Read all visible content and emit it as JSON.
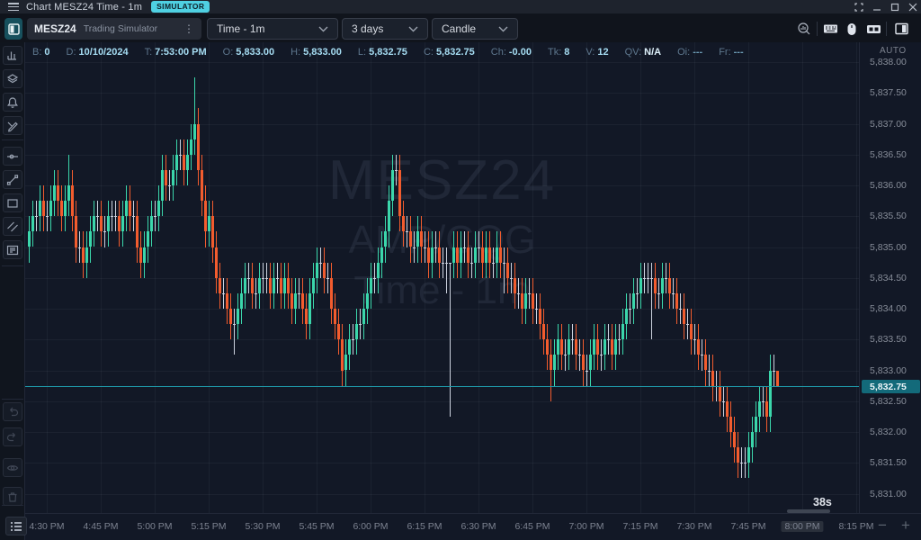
{
  "window": {
    "title": "Chart MESZ24 Time - 1m",
    "badge": "SIMULATOR",
    "controls": [
      "fullscreen",
      "minimize",
      "maximize",
      "close"
    ]
  },
  "toolbar": {
    "layout_icon": "layout-left-panel",
    "symbol": {
      "name": "MESZ24",
      "description": "Trading Simulator",
      "menu_glyph": "⋮"
    },
    "interval_dropdown": "Time - 1m",
    "range_dropdown": "3 days",
    "style_dropdown": "Candle",
    "right_icons": [
      "zoom-chart",
      "keyboard",
      "mouse",
      "tags",
      "panel-right"
    ]
  },
  "quote_bar": {
    "fields": [
      {
        "label": "B:",
        "value": "0"
      },
      {
        "label": "D:",
        "value": "10/10/2024"
      },
      {
        "label": "T:",
        "value": "7:53:00 PM"
      },
      {
        "label": "O:",
        "value": "5,833.00"
      },
      {
        "label": "H:",
        "value": "5,833.00"
      },
      {
        "label": "L:",
        "value": "5,832.75"
      },
      {
        "label": "C:",
        "value": "5,832.75"
      },
      {
        "label": "Ch:",
        "value": "-0.00"
      },
      {
        "label": "Tk:",
        "value": "8"
      },
      {
        "label": "V:",
        "value": "12"
      },
      {
        "label": "QV:",
        "value": "N/A"
      },
      {
        "label": "Oi:",
        "value": "---"
      },
      {
        "label": "Fr:",
        "value": "---"
      }
    ],
    "auto_label": "AUTO"
  },
  "sidebar": {
    "tools": [
      "indicators",
      "layers",
      "alert",
      "draw",
      "horizontal-ray",
      "trend-line",
      "rectangle",
      "parallel-channel",
      "pattern-list"
    ],
    "history": [
      "undo",
      "redo",
      "visibility",
      "delete"
    ],
    "corner_button": "object-tree"
  },
  "watermark": {
    "line1": "MESZ24",
    "line2": "AMP/CQG",
    "line3": "Time - 1m"
  },
  "price_axis": {
    "labels": [
      "5,838.00",
      "5,837.50",
      "5,837.00",
      "5,836.50",
      "5,836.00",
      "5,835.50",
      "5,835.00",
      "5,834.50",
      "5,834.00",
      "5,833.50",
      "5,833.00",
      "5,832.50",
      "5,832.00",
      "5,831.50",
      "5,831.00"
    ],
    "last_price_label": "5,832.75"
  },
  "time_axis": {
    "labels": [
      "4:30 PM",
      "4:45 PM",
      "5:00 PM",
      "5:15 PM",
      "5:30 PM",
      "5:45 PM",
      "6:00 PM",
      "6:15 PM",
      "6:30 PM",
      "6:45 PM",
      "7:00 PM",
      "7:15 PM",
      "7:30 PM",
      "7:45 PM",
      "8:00 PM",
      "8:15 PM"
    ],
    "highlight_index": 14,
    "zoom_out": "−",
    "zoom_in": "+"
  },
  "countdown": "38s",
  "colors": {
    "up": "#3bd6ab",
    "down": "#f25c2e",
    "neutral": "#ccd2de",
    "accent": "#4fd0e2",
    "price_line": "#1f9aaa",
    "price_label_bg": "#136a7a"
  },
  "chart_data": {
    "type": "candlestick",
    "symbol": "MESZ24",
    "feed": "AMP/CQG",
    "interval": "Time - 1m",
    "start_time": "4:25 PM",
    "end_time": "7:53 PM",
    "last_price": 5832.75,
    "ylim": [
      5831.0,
      5838.0
    ],
    "candles": [
      [
        5835,
        5835.5,
        5834.75,
        5835.25
      ],
      [
        5835.25,
        5835.75,
        5835,
        5835.5
      ],
      [
        5835.5,
        5835.75,
        5835.25,
        5835.5
      ],
      [
        5835.5,
        5836,
        5835.25,
        5835.75
      ],
      [
        5835.75,
        5836,
        5835.25,
        5835.5
      ],
      [
        5835.5,
        5835.75,
        5835.25,
        5835.5
      ],
      [
        5835.5,
        5836,
        5835.25,
        5835.75
      ],
      [
        5835.75,
        5836.25,
        5835.5,
        5836
      ],
      [
        5836,
        5836.25,
        5835.5,
        5835.75
      ],
      [
        5835.75,
        5836,
        5835.25,
        5835.5
      ],
      [
        5835.5,
        5836,
        5835.25,
        5835.75
      ],
      [
        5835.75,
        5836.5,
        5835.5,
        5836
      ],
      [
        5836,
        5836.25,
        5835.25,
        5835.5
      ],
      [
        5835.5,
        5835.75,
        5834.75,
        5835
      ],
      [
        5835,
        5835.25,
        5834.75,
        5835
      ],
      [
        5835,
        5835.25,
        5834.5,
        5834.75
      ],
      [
        5834.75,
        5835.25,
        5834.5,
        5835
      ],
      [
        5835,
        5835.5,
        5834.75,
        5835.25
      ],
      [
        5835.25,
        5835.75,
        5835,
        5835.5
      ],
      [
        5835.5,
        5835.75,
        5835.25,
        5835.5
      ],
      [
        5835.5,
        5835.75,
        5835,
        5835.25
      ],
      [
        5835.25,
        5835.5,
        5835,
        5835.25
      ],
      [
        5835.25,
        5835.75,
        5835,
        5835.5
      ],
      [
        5835.5,
        5835.75,
        5835.25,
        5835.5
      ],
      [
        5835.5,
        5835.75,
        5835.25,
        5835.5
      ],
      [
        5835.5,
        5835.75,
        5835,
        5835.25
      ],
      [
        5835.25,
        5835.75,
        5835,
        5835.5
      ],
      [
        5835.5,
        5836,
        5835.25,
        5835.75
      ],
      [
        5835.75,
        5836,
        5835.25,
        5835.5
      ],
      [
        5835.5,
        5835.75,
        5835.25,
        5835.5
      ],
      [
        5835.5,
        5835.75,
        5834.75,
        5835
      ],
      [
        5835,
        5835.25,
        5834.5,
        5834.75
      ],
      [
        5834.75,
        5835.25,
        5834.5,
        5835
      ],
      [
        5835,
        5835.5,
        5834.75,
        5835.25
      ],
      [
        5835.25,
        5835.75,
        5835,
        5835.5
      ],
      [
        5835.5,
        5835.75,
        5835.25,
        5835.5
      ],
      [
        5835.5,
        5836,
        5835.25,
        5835.75
      ],
      [
        5835.75,
        5836.5,
        5835.5,
        5836.25
      ],
      [
        5836.25,
        5836.5,
        5835.75,
        5836
      ],
      [
        5836,
        5836.25,
        5835.75,
        5836
      ],
      [
        5836,
        5836.5,
        5835.75,
        5836.25
      ],
      [
        5836.25,
        5836.75,
        5836,
        5836.5
      ],
      [
        5836.5,
        5836.75,
        5836.25,
        5836.5
      ],
      [
        5836.5,
        5836.75,
        5836,
        5836.25
      ],
      [
        5836.25,
        5836.75,
        5836,
        5836.5
      ],
      [
        5836.5,
        5837,
        5836.25,
        5836.75
      ],
      [
        5836.75,
        5837.75,
        5836.5,
        5837
      ],
      [
        5837,
        5837.25,
        5836,
        5836.25
      ],
      [
        5836.25,
        5836.5,
        5835.5,
        5835.75
      ],
      [
        5835.75,
        5836,
        5835,
        5835.25
      ],
      [
        5835.25,
        5835.75,
        5835,
        5835.5
      ],
      [
        5835.5,
        5835.75,
        5834.75,
        5835
      ],
      [
        5835,
        5835.25,
        5834.25,
        5834.5
      ],
      [
        5834.5,
        5834.75,
        5834,
        5834.25
      ],
      [
        5834.25,
        5834.5,
        5834,
        5834.25
      ],
      [
        5834.25,
        5834.5,
        5833.75,
        5834
      ],
      [
        5834,
        5834.25,
        5833.5,
        5833.75
      ],
      [
        5833.75,
        5834,
        5833.25,
        5833.75
      ],
      [
        5833.75,
        5834.25,
        5833.5,
        5834
      ],
      [
        5834,
        5834.5,
        5833.75,
        5834.25
      ],
      [
        5834.25,
        5834.75,
        5834,
        5834.5
      ],
      [
        5834.5,
        5834.75,
        5834.25,
        5834.5
      ],
      [
        5834.5,
        5834.75,
        5834,
        5834.25
      ],
      [
        5834.25,
        5834.5,
        5834,
        5834.25
      ],
      [
        5834.25,
        5834.75,
        5834,
        5834.5
      ],
      [
        5834.5,
        5834.75,
        5834.25,
        5834.5
      ],
      [
        5834.5,
        5834.75,
        5834.25,
        5834.5
      ],
      [
        5834.5,
        5834.75,
        5834,
        5834.25
      ],
      [
        5834.25,
        5834.75,
        5834,
        5834.5
      ],
      [
        5834.5,
        5834.75,
        5834.25,
        5834.5
      ],
      [
        5834.5,
        5834.75,
        5834,
        5834.25
      ],
      [
        5834.25,
        5834.75,
        5834,
        5834.5
      ],
      [
        5834.5,
        5834.75,
        5834,
        5834.25
      ],
      [
        5834.25,
        5834.5,
        5833.75,
        5834
      ],
      [
        5834,
        5834.5,
        5833.75,
        5834.25
      ],
      [
        5834.25,
        5834.5,
        5834,
        5834.25
      ],
      [
        5834.25,
        5834.5,
        5833.75,
        5834
      ],
      [
        5834,
        5834.25,
        5833.5,
        5833.75
      ],
      [
        5833.75,
        5834.5,
        5833.5,
        5834.25
      ],
      [
        5834.25,
        5834.75,
        5834,
        5834.5
      ],
      [
        5834.5,
        5835,
        5834.25,
        5834.75
      ],
      [
        5834.75,
        5835,
        5834.5,
        5834.75
      ],
      [
        5834.75,
        5835,
        5834.25,
        5834.5
      ],
      [
        5834.5,
        5834.75,
        5834.25,
        5834.5
      ],
      [
        5834.5,
        5834.75,
        5833.75,
        5834
      ],
      [
        5834,
        5834.25,
        5833.5,
        5833.75
      ],
      [
        5833.75,
        5834,
        5833.25,
        5833.5
      ],
      [
        5833.5,
        5833.75,
        5832.75,
        5833
      ],
      [
        5833,
        5833.5,
        5832.75,
        5833.25
      ],
      [
        5833.25,
        5833.75,
        5833,
        5833.5
      ],
      [
        5833.5,
        5833.75,
        5833.25,
        5833.5
      ],
      [
        5833.5,
        5834,
        5833.25,
        5833.75
      ],
      [
        5833.75,
        5834,
        5833.5,
        5833.75
      ],
      [
        5833.75,
        5834.25,
        5833.5,
        5834
      ],
      [
        5834,
        5834.5,
        5833.75,
        5834.25
      ],
      [
        5834.25,
        5834.75,
        5834,
        5834.5
      ],
      [
        5834.5,
        5834.75,
        5834.25,
        5834.5
      ],
      [
        5834.5,
        5835,
        5834.25,
        5834.75
      ],
      [
        5834.75,
        5835.25,
        5834.5,
        5835
      ],
      [
        5835,
        5835.5,
        5834.75,
        5835.25
      ],
      [
        5835.25,
        5836,
        5835,
        5835.75
      ],
      [
        5835.75,
        5836.5,
        5835.5,
        5836.25
      ],
      [
        5836.25,
        5836.5,
        5836,
        5836.25
      ],
      [
        5836.25,
        5836.5,
        5835.25,
        5835.5
      ],
      [
        5835.5,
        5835.75,
        5835,
        5835.25
      ],
      [
        5835.25,
        5835.5,
        5835,
        5835.25
      ],
      [
        5835.25,
        5835.5,
        5834.75,
        5835
      ],
      [
        5835,
        5835.25,
        5834.75,
        5835
      ],
      [
        5835,
        5835.5,
        5834.75,
        5835.25
      ],
      [
        5835.25,
        5835.5,
        5834.75,
        5835
      ],
      [
        5835,
        5835.25,
        5834.75,
        5835
      ],
      [
        5835,
        5835.25,
        5834.5,
        5834.75
      ],
      [
        5834.75,
        5835.25,
        5834.5,
        5835
      ],
      [
        5835,
        5835.25,
        5834.75,
        5835
      ],
      [
        5835,
        5835.25,
        5834.5,
        5834.75
      ],
      [
        5834.75,
        5835,
        5834.5,
        5834.75
      ],
      [
        5834.75,
        5835,
        5834.25,
        5834.75
      ],
      [
        5834.75,
        5834.75,
        5832.25,
        5834.75
      ],
      [
        5834.75,
        5835.25,
        5834.5,
        5835
      ],
      [
        5835,
        5835.25,
        5834.5,
        5834.75
      ],
      [
        5834.75,
        5835.25,
        5834.5,
        5835
      ],
      [
        5835,
        5835.25,
        5834.75,
        5835
      ],
      [
        5835,
        5835.25,
        5834.5,
        5834.75
      ],
      [
        5834.75,
        5835,
        5834.5,
        5834.75
      ],
      [
        5834.75,
        5835.25,
        5834.5,
        5835
      ],
      [
        5835,
        5835.25,
        5834.75,
        5835
      ],
      [
        5835,
        5835.25,
        5834.5,
        5834.75
      ],
      [
        5834.75,
        5835.25,
        5834.5,
        5835
      ],
      [
        5835,
        5835.25,
        5834.5,
        5834.75
      ],
      [
        5834.75,
        5835,
        5834.5,
        5834.75
      ],
      [
        5834.75,
        5835.25,
        5834.5,
        5835
      ],
      [
        5835,
        5835.25,
        5834.5,
        5834.75
      ],
      [
        5834.75,
        5835,
        5834.25,
        5834.75
      ],
      [
        5834.75,
        5835,
        5834.25,
        5834.5
      ],
      [
        5834.5,
        5834.75,
        5834.25,
        5834.5
      ],
      [
        5834.5,
        5834.75,
        5834,
        5834.25
      ],
      [
        5834.25,
        5834.5,
        5834,
        5834.25
      ],
      [
        5834.25,
        5834.5,
        5833.75,
        5834
      ],
      [
        5834,
        5834.5,
        5833.75,
        5834.25
      ],
      [
        5834.25,
        5834.5,
        5834,
        5834.25
      ],
      [
        5834.25,
        5834.5,
        5833.75,
        5834
      ],
      [
        5834,
        5834.25,
        5833.75,
        5834
      ],
      [
        5834,
        5834.25,
        5833.5,
        5833.75
      ],
      [
        5833.75,
        5834,
        5833.25,
        5833.5
      ],
      [
        5833.5,
        5833.75,
        5833,
        5833.25
      ],
      [
        5833.25,
        5833.5,
        5832.5,
        5833
      ],
      [
        5833,
        5833.5,
        5832.75,
        5833.25
      ],
      [
        5833.25,
        5833.75,
        5833,
        5833.5
      ],
      [
        5833.5,
        5833.75,
        5833,
        5833.25
      ],
      [
        5833.25,
        5833.5,
        5833,
        5833.25
      ],
      [
        5833.25,
        5833.75,
        5833,
        5833.5
      ],
      [
        5833.5,
        5833.75,
        5833.25,
        5833.5
      ],
      [
        5833.5,
        5833.75,
        5833,
        5833.25
      ],
      [
        5833.25,
        5833.5,
        5833,
        5833.25
      ],
      [
        5833.25,
        5833.5,
        5832.75,
        5833
      ],
      [
        5833,
        5833.25,
        5832.75,
        5833
      ],
      [
        5833,
        5833.5,
        5832.75,
        5833.25
      ],
      [
        5833.25,
        5833.75,
        5833,
        5833.5
      ],
      [
        5833.5,
        5833.75,
        5833,
        5833.25
      ],
      [
        5833.25,
        5833.5,
        5833,
        5833.25
      ],
      [
        5833.25,
        5833.75,
        5833,
        5833.5
      ],
      [
        5833.5,
        5833.75,
        5833.25,
        5833.5
      ],
      [
        5833.5,
        5833.75,
        5833,
        5833.25
      ],
      [
        5833.25,
        5833.75,
        5833,
        5833.5
      ],
      [
        5833.5,
        5833.75,
        5833.25,
        5833.5
      ],
      [
        5833.5,
        5834,
        5833.25,
        5833.75
      ],
      [
        5833.75,
        5834.25,
        5833.5,
        5834
      ],
      [
        5834,
        5834.25,
        5833.75,
        5834
      ],
      [
        5834,
        5834.5,
        5833.75,
        5834.25
      ],
      [
        5834.25,
        5834.5,
        5834,
        5834.25
      ],
      [
        5834.25,
        5834.75,
        5834,
        5834.5
      ],
      [
        5834.5,
        5834.75,
        5834.25,
        5834.5
      ],
      [
        5834.5,
        5834.75,
        5834.25,
        5834.5
      ],
      [
        5834.5,
        5834.75,
        5833.5,
        5834.5
      ],
      [
        5834.5,
        5834.75,
        5834,
        5834.25
      ],
      [
        5834.25,
        5834.5,
        5834,
        5834.25
      ],
      [
        5834.25,
        5834.75,
        5834,
        5834.5
      ],
      [
        5834.5,
        5834.75,
        5834.25,
        5834.5
      ],
      [
        5834.5,
        5834.75,
        5834,
        5834.25
      ],
      [
        5834.25,
        5834.5,
        5834,
        5834.25
      ],
      [
        5834.25,
        5834.5,
        5833.75,
        5834
      ],
      [
        5834,
        5834.25,
        5833.75,
        5834
      ],
      [
        5834,
        5834.25,
        5833.5,
        5833.75
      ],
      [
        5833.75,
        5834,
        5833.5,
        5833.75
      ],
      [
        5833.75,
        5834,
        5833.25,
        5833.5
      ],
      [
        5833.5,
        5833.75,
        5833.25,
        5833.5
      ],
      [
        5833.5,
        5833.75,
        5833,
        5833.25
      ],
      [
        5833.25,
        5833.5,
        5833,
        5833.25
      ],
      [
        5833.25,
        5833.5,
        5832.75,
        5833
      ],
      [
        5833,
        5833.25,
        5832.75,
        5833
      ],
      [
        5833,
        5833.25,
        5832.5,
        5832.75
      ],
      [
        5832.75,
        5833,
        5832.5,
        5832.75
      ],
      [
        5832.75,
        5833,
        5832.25,
        5832.5
      ],
      [
        5832.5,
        5832.75,
        5832.25,
        5832.5
      ],
      [
        5832.5,
        5832.75,
        5832,
        5832.25
      ],
      [
        5832.25,
        5832.5,
        5831.75,
        5832
      ],
      [
        5832,
        5832.25,
        5831.5,
        5831.75
      ],
      [
        5831.75,
        5832,
        5831.25,
        5831.5
      ],
      [
        5831.5,
        5831.75,
        5831.25,
        5831.5
      ],
      [
        5831.5,
        5831.75,
        5831.25,
        5831.5
      ],
      [
        5831.5,
        5832,
        5831.25,
        5831.75
      ],
      [
        5831.75,
        5832.25,
        5831.5,
        5832
      ],
      [
        5832,
        5832.5,
        5831.75,
        5832.25
      ],
      [
        5832.25,
        5832.75,
        5832,
        5832.5
      ],
      [
        5832.5,
        5832.75,
        5832.25,
        5832.5
      ],
      [
        5832.5,
        5832.75,
        5832,
        5832.25
      ],
      [
        5832.25,
        5833.25,
        5832,
        5833
      ],
      [
        5833,
        5833.25,
        5832.75,
        5833
      ],
      [
        5833,
        5833,
        5832.75,
        5832.75
      ]
    ]
  }
}
